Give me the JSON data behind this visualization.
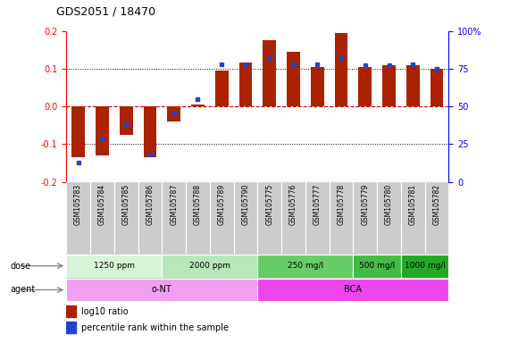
{
  "title": "GDS2051 / 18470",
  "samples": [
    "GSM105783",
    "GSM105784",
    "GSM105785",
    "GSM105786",
    "GSM105787",
    "GSM105788",
    "GSM105789",
    "GSM105790",
    "GSM105775",
    "GSM105776",
    "GSM105777",
    "GSM105778",
    "GSM105779",
    "GSM105780",
    "GSM105781",
    "GSM105782"
  ],
  "log10_ratio": [
    -0.135,
    -0.13,
    -0.075,
    -0.135,
    -0.04,
    0.005,
    0.095,
    0.115,
    0.175,
    0.145,
    0.105,
    0.195,
    0.105,
    0.11,
    0.11,
    0.1
  ],
  "percentile_rank": [
    13,
    28,
    38,
    18,
    45,
    55,
    78,
    78,
    82,
    78,
    78,
    82,
    77,
    77,
    78,
    75
  ],
  "ylim": [
    -0.2,
    0.2
  ],
  "yticks_left": [
    -0.2,
    -0.1,
    0.0,
    0.1,
    0.2
  ],
  "yticks_right": [
    0,
    25,
    50,
    75,
    100
  ],
  "dose_groups": [
    {
      "label": "1250 ppm",
      "start": 0,
      "end": 4,
      "color": "#d6f5d6"
    },
    {
      "label": "2000 ppm",
      "start": 4,
      "end": 8,
      "color": "#b8e8b8"
    },
    {
      "label": "250 mg/l",
      "start": 8,
      "end": 12,
      "color": "#66cc66"
    },
    {
      "label": "500 mg/l",
      "start": 12,
      "end": 14,
      "color": "#44bb44"
    },
    {
      "label": "1000 mg/l",
      "start": 14,
      "end": 16,
      "color": "#22aa22"
    }
  ],
  "agent_groups": [
    {
      "label": "o-NT",
      "start": 0,
      "end": 8,
      "color": "#f0a0f0"
    },
    {
      "label": "BCA",
      "start": 8,
      "end": 16,
      "color": "#ee44ee"
    }
  ],
  "bar_color": "#aa2200",
  "dot_color": "#2244cc",
  "zero_line_color": "#cc0000",
  "dotted_line_color": "#000000",
  "bg_color": "#ffffff",
  "label_bg": "#cccccc",
  "legend_red": "log10 ratio",
  "legend_blue": "percentile rank within the sample"
}
